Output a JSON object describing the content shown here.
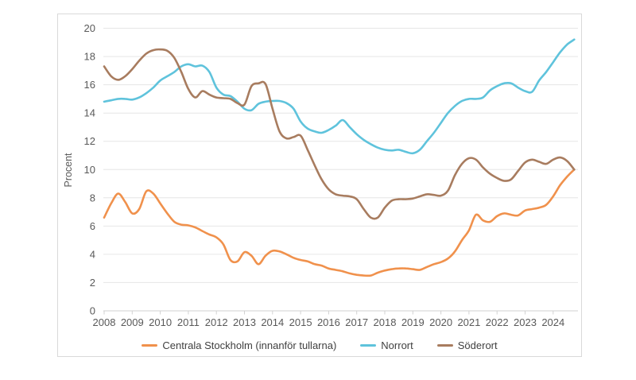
{
  "chart": {
    "ylabel": "Procent",
    "y_ticks": [
      0,
      2,
      4,
      6,
      8,
      10,
      12,
      14,
      16,
      18,
      20
    ],
    "x_tick_labels": [
      "2008",
      "2009",
      "2010",
      "2011",
      "2012",
      "2013",
      "2014",
      "2015",
      "2016",
      "2017",
      "2018",
      "2019",
      "2020",
      "2021",
      "2022",
      "2023",
      "2024"
    ],
    "colors": {
      "grid": "#e6e6e6",
      "axis": "#d2d2d2",
      "tick_text": "#595959",
      "axis_label_text": "#595959",
      "legend_text": "#404040",
      "card_border": "#d9d9d9",
      "background": "#ffffff",
      "centrala": "#f0914c",
      "norrort": "#5fc3dc",
      "soderort": "#a87c5f"
    }
  },
  "chart_data": {
    "type": "line",
    "title": "",
    "xlabel": "",
    "ylabel": "Procent",
    "ylim": [
      0,
      20
    ],
    "xlim": [
      2008,
      2024.9
    ],
    "grid": true,
    "legend_position": "bottom",
    "x": [
      2008.0,
      2008.25,
      2008.5,
      2008.75,
      2009.0,
      2009.25,
      2009.5,
      2009.75,
      2010.0,
      2010.25,
      2010.5,
      2010.75,
      2011.0,
      2011.25,
      2011.5,
      2011.75,
      2012.0,
      2012.25,
      2012.5,
      2012.75,
      2013.0,
      2013.25,
      2013.5,
      2013.75,
      2014.0,
      2014.25,
      2014.5,
      2014.75,
      2015.0,
      2015.25,
      2015.5,
      2015.75,
      2016.0,
      2016.25,
      2016.5,
      2016.75,
      2017.0,
      2017.25,
      2017.5,
      2017.75,
      2018.0,
      2018.25,
      2018.5,
      2018.75,
      2019.0,
      2019.25,
      2019.5,
      2019.75,
      2020.0,
      2020.25,
      2020.5,
      2020.75,
      2021.0,
      2021.25,
      2021.5,
      2021.75,
      2022.0,
      2022.25,
      2022.5,
      2022.75,
      2023.0,
      2023.25,
      2023.5,
      2023.75,
      2024.0,
      2024.25,
      2024.5,
      2024.75
    ],
    "series": [
      {
        "name": "Centrala Stockholm (innanför tullarna)",
        "color": "#f0914c",
        "values": [
          6.6,
          7.6,
          8.3,
          7.7,
          6.9,
          7.2,
          8.45,
          8.3,
          7.6,
          6.9,
          6.3,
          6.1,
          6.05,
          5.9,
          5.65,
          5.4,
          5.2,
          4.7,
          3.6,
          3.5,
          4.15,
          3.9,
          3.3,
          3.9,
          4.25,
          4.2,
          4.0,
          3.75,
          3.6,
          3.5,
          3.3,
          3.2,
          3.0,
          2.9,
          2.8,
          2.65,
          2.55,
          2.5,
          2.5,
          2.7,
          2.85,
          2.95,
          3.0,
          3.0,
          2.95,
          2.9,
          3.1,
          3.3,
          3.45,
          3.7,
          4.2,
          5.0,
          5.7,
          6.8,
          6.4,
          6.3,
          6.7,
          6.9,
          6.8,
          6.75,
          7.1,
          7.2,
          7.3,
          7.5,
          8.1,
          8.9,
          9.5,
          10.0
        ]
      },
      {
        "name": "Norrort",
        "color": "#5fc3dc",
        "values": [
          14.8,
          14.9,
          15.0,
          15.0,
          14.95,
          15.1,
          15.4,
          15.8,
          16.3,
          16.6,
          16.9,
          17.3,
          17.45,
          17.3,
          17.35,
          16.9,
          15.8,
          15.3,
          15.2,
          14.8,
          14.3,
          14.2,
          14.65,
          14.8,
          14.85,
          14.85,
          14.7,
          14.3,
          13.4,
          12.9,
          12.7,
          12.6,
          12.8,
          13.1,
          13.5,
          13.0,
          12.5,
          12.1,
          11.8,
          11.55,
          11.4,
          11.35,
          11.4,
          11.25,
          11.15,
          11.4,
          12.0,
          12.6,
          13.3,
          14.0,
          14.5,
          14.85,
          15.0,
          15.0,
          15.1,
          15.6,
          15.9,
          16.1,
          16.1,
          15.8,
          15.55,
          15.5,
          16.3,
          16.9,
          17.6,
          18.3,
          18.85,
          19.2
        ]
      },
      {
        "name": "Söderort",
        "color": "#a87c5f",
        "values": [
          17.3,
          16.6,
          16.35,
          16.6,
          17.1,
          17.7,
          18.2,
          18.45,
          18.5,
          18.4,
          17.9,
          16.9,
          15.7,
          15.1,
          15.55,
          15.3,
          15.1,
          15.05,
          15.0,
          14.7,
          14.6,
          15.9,
          16.1,
          16.05,
          14.3,
          12.7,
          12.2,
          12.3,
          12.4,
          11.4,
          10.3,
          9.3,
          8.6,
          8.25,
          8.15,
          8.1,
          7.9,
          7.2,
          6.6,
          6.6,
          7.3,
          7.8,
          7.9,
          7.9,
          7.95,
          8.1,
          8.25,
          8.2,
          8.15,
          8.5,
          9.6,
          10.4,
          10.8,
          10.7,
          10.15,
          9.7,
          9.4,
          9.2,
          9.3,
          9.9,
          10.5,
          10.7,
          10.55,
          10.4,
          10.7,
          10.85,
          10.6,
          10.0
        ]
      }
    ]
  }
}
